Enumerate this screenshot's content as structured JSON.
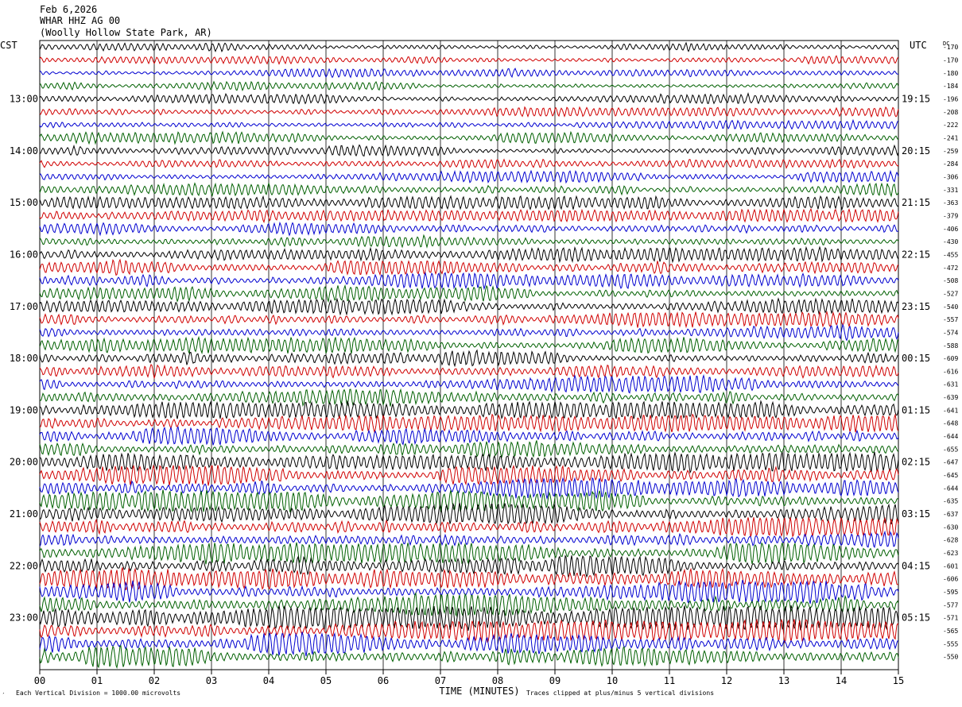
{
  "header": {
    "date": "Feb 6,2026",
    "channel": "WHAR HHZ AG 00",
    "location": "(Woolly Hollow State Park, AR)"
  },
  "left_zone": "CST",
  "right_zone": "UTC",
  "dc_label": "DC",
  "footer": {
    "scale_note": "Each Vertical Division = 1000.00 microvolts",
    "clip_note": "Traces clipped at plus/minus 5 vertical divisions",
    "corner_mark": "′"
  },
  "colors": {
    "trace_cycle": [
      "#000000",
      "#d00000",
      "#0000d0",
      "#006000"
    ],
    "grid": "#000000",
    "background": "#ffffff"
  },
  "chart_data": {
    "type": "line",
    "xlabel": "TIME (MINUTES)",
    "xlim": [
      0,
      15
    ],
    "x_ticks": [
      "00",
      "01",
      "02",
      "03",
      "04",
      "05",
      "06",
      "07",
      "08",
      "09",
      "10",
      "11",
      "12",
      "13",
      "14",
      "15"
    ],
    "rows_per_hour": 4,
    "left_hour_labels": [
      {
        "row": 4,
        "label": "13:00"
      },
      {
        "row": 8,
        "label": "14:00"
      },
      {
        "row": 12,
        "label": "15:00"
      },
      {
        "row": 16,
        "label": "16:00"
      },
      {
        "row": 20,
        "label": "17:00"
      },
      {
        "row": 24,
        "label": "18:00"
      },
      {
        "row": 28,
        "label": "19:00"
      },
      {
        "row": 32,
        "label": "20:00"
      },
      {
        "row": 36,
        "label": "21:00"
      },
      {
        "row": 40,
        "label": "22:00"
      },
      {
        "row": 44,
        "label": "23:00"
      }
    ],
    "right_hour_labels": [
      {
        "row": 4,
        "label": "19:15"
      },
      {
        "row": 8,
        "label": "20:15"
      },
      {
        "row": 12,
        "label": "21:15"
      },
      {
        "row": 16,
        "label": "22:15"
      },
      {
        "row": 20,
        "label": "23:15"
      },
      {
        "row": 24,
        "label": "00:15"
      },
      {
        "row": 28,
        "label": "01:15"
      },
      {
        "row": 32,
        "label": "02:15"
      },
      {
        "row": 36,
        "label": "03:15"
      },
      {
        "row": 40,
        "label": "04:15"
      },
      {
        "row": 44,
        "label": "05:15"
      }
    ],
    "dc_offsets": [
      -170,
      -170,
      -180,
      -184,
      -196,
      -208,
      -222,
      -241,
      -259,
      -284,
      -306,
      -331,
      -363,
      -379,
      -406,
      -430,
      -455,
      -472,
      -508,
      -527,
      -540,
      -557,
      -574,
      -588,
      -609,
      -616,
      -631,
      -639,
      -641,
      -648,
      -644,
      -655,
      -647,
      -645,
      -644,
      -635,
      -637,
      -630,
      -628,
      -623,
      -601,
      -606,
      -595,
      -577,
      -571,
      -565,
      -555,
      -550
    ],
    "row_amplitude": [
      0.3,
      0.3,
      0.3,
      0.3,
      0.35,
      0.35,
      0.35,
      0.4,
      0.4,
      0.4,
      0.4,
      0.45,
      0.45,
      0.45,
      0.5,
      0.5,
      0.5,
      0.55,
      0.55,
      0.55,
      0.55,
      0.55,
      0.55,
      0.55,
      0.55,
      0.55,
      0.6,
      0.6,
      0.6,
      0.65,
      0.65,
      0.7,
      0.7,
      0.7,
      0.7,
      0.75,
      0.75,
      0.75,
      0.75,
      0.75,
      0.8,
      0.8,
      0.8,
      0.85,
      0.85,
      0.85,
      0.85,
      0.85
    ]
  }
}
